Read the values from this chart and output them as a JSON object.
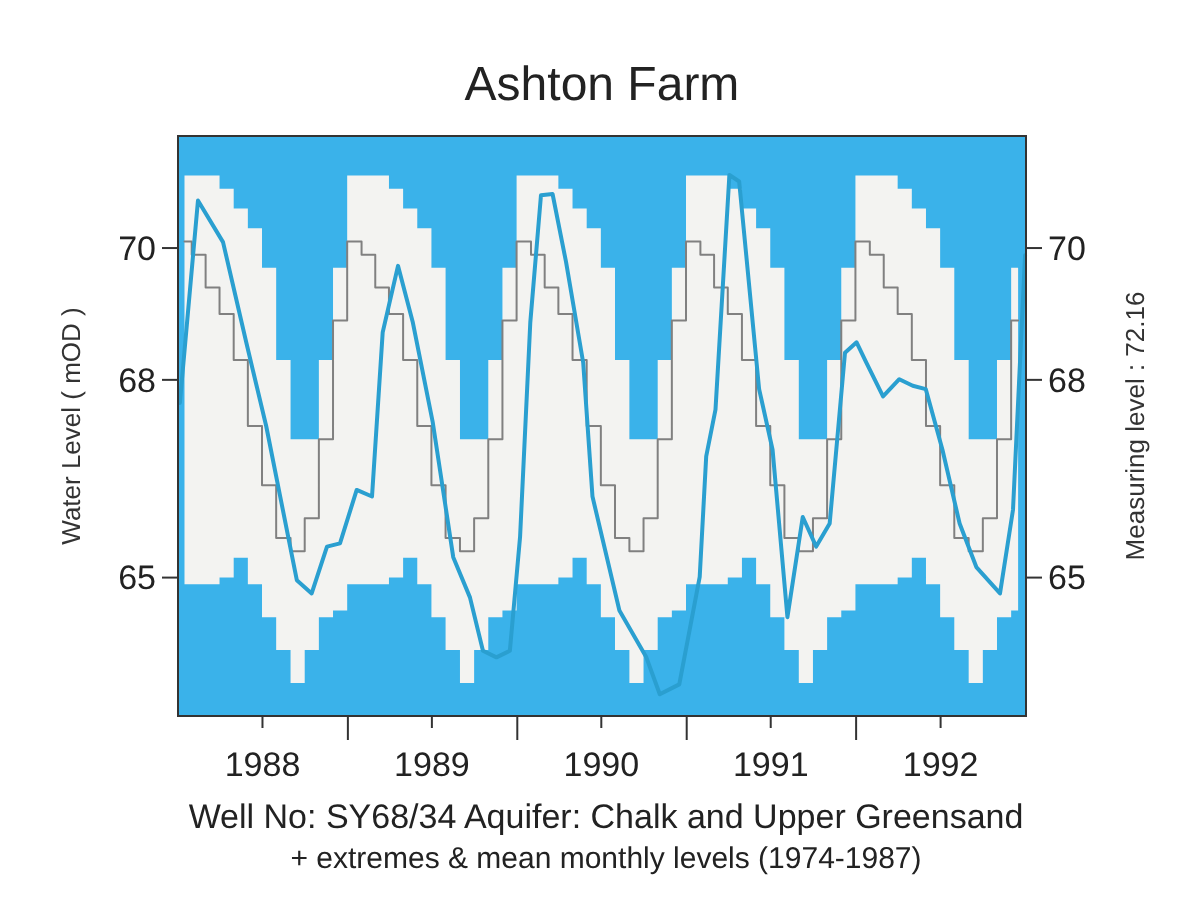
{
  "chart_data": {
    "type": "line",
    "title": "Ashton Farm",
    "ylabel": "Water Level ( mOD )",
    "y2label": "Measuring level :  72.16",
    "annotations": [
      "Well No: SY68/34  Aquifer: Chalk and Upper Greensand",
      "+ extremes & mean monthly levels (1974-1987)"
    ],
    "xlim": [
      "1988-01-01",
      "1993-01-01"
    ],
    "xticks": [
      {
        "value": "1988-07-01",
        "label": "1988"
      },
      {
        "value": "1989-01-01",
        "label": null
      },
      {
        "value": "1989-07-01",
        "label": "1989"
      },
      {
        "value": "1990-01-01",
        "label": null
      },
      {
        "value": "1990-07-01",
        "label": "1990"
      },
      {
        "value": "1991-01-01",
        "label": null
      },
      {
        "value": "1991-07-01",
        "label": "1991"
      },
      {
        "value": "1992-01-01",
        "label": null
      },
      {
        "value": "1992-07-01",
        "label": "1992"
      }
    ],
    "ylim": [
      62.9,
      71.7
    ],
    "yticks": [
      65,
      68,
      70
    ],
    "y2lim": [
      62.9,
      71.7
    ],
    "y2ticks": [
      65,
      68,
      70
    ],
    "series": [
      {
        "type": "step",
        "color": "#808080",
        "x": [
          "1988-01-15",
          "1988-02-15",
          "1988-03-15",
          "1988-04-15",
          "1988-05-15",
          "1988-06-15",
          "1988-07-15",
          "1988-08-15",
          "1988-09-15",
          "1988-10-15",
          "1988-11-15",
          "1988-12-15",
          "1989-01-15",
          "1989-02-15",
          "1989-03-15",
          "1989-04-15",
          "1989-05-15",
          "1989-06-15",
          "1989-07-15",
          "1989-08-15",
          "1989-09-15",
          "1989-10-15",
          "1989-11-15",
          "1989-12-15",
          "1990-01-15",
          "1990-02-15",
          "1990-03-15",
          "1990-04-15",
          "1990-05-15",
          "1990-06-15",
          "1990-07-15",
          "1990-08-15",
          "1990-09-15",
          "1990-10-15",
          "1990-11-15",
          "1990-12-15",
          "1991-01-15",
          "1991-02-15",
          "1991-03-15",
          "1991-04-15",
          "1991-05-15",
          "1991-06-15",
          "1991-07-15",
          "1991-08-15",
          "1991-09-15",
          "1991-10-15",
          "1991-11-15",
          "1991-12-15",
          "1992-01-15",
          "1992-02-15",
          "1992-03-15",
          "1992-04-15",
          "1992-05-15",
          "1992-06-15",
          "1992-07-15",
          "1992-08-15",
          "1992-09-15",
          "1992-10-15",
          "1992-11-15",
          "1992-12-15"
        ],
        "values": [
          70.1,
          69.9,
          69.4,
          69.0,
          68.3,
          67.3,
          66.4,
          65.6,
          65.4,
          65.9,
          67.1,
          68.9,
          70.1,
          69.9,
          69.4,
          69.0,
          68.3,
          67.3,
          66.4,
          65.6,
          65.4,
          65.9,
          67.1,
          68.9,
          70.1,
          69.9,
          69.4,
          69.0,
          68.3,
          67.3,
          66.4,
          65.6,
          65.4,
          65.9,
          67.1,
          68.9,
          70.1,
          69.9,
          69.4,
          69.0,
          68.3,
          67.3,
          66.4,
          65.6,
          65.4,
          65.9,
          67.1,
          68.9,
          70.1,
          69.9,
          69.4,
          69.0,
          68.3,
          67.3,
          66.4,
          65.6,
          65.4,
          65.9,
          67.1,
          68.9
        ],
        "lower": [
          64.9,
          64.9,
          64.9,
          65.0,
          65.3,
          64.9,
          64.4,
          63.9,
          63.4,
          63.9,
          64.4,
          64.5,
          64.9,
          64.9,
          64.9,
          65.0,
          65.3,
          64.9,
          64.4,
          63.9,
          63.4,
          63.9,
          64.4,
          64.5,
          64.9,
          64.9,
          64.9,
          65.0,
          65.3,
          64.9,
          64.4,
          63.9,
          63.4,
          63.9,
          64.4,
          64.5,
          64.9,
          64.9,
          64.9,
          65.0,
          65.3,
          64.9,
          64.4,
          63.9,
          63.4,
          63.9,
          64.4,
          64.5,
          64.9,
          64.9,
          64.9,
          65.0,
          65.3,
          64.9,
          64.4,
          63.9,
          63.4,
          63.9,
          64.4,
          64.5
        ],
        "upper": [
          71.1,
          71.1,
          71.1,
          70.9,
          70.6,
          70.3,
          69.7,
          68.3,
          67.1,
          67.1,
          68.3,
          69.7,
          71.1,
          71.1,
          71.1,
          70.9,
          70.6,
          70.3,
          69.7,
          68.3,
          67.1,
          67.1,
          68.3,
          69.7,
          71.1,
          71.1,
          71.1,
          70.9,
          70.6,
          70.3,
          69.7,
          68.3,
          67.1,
          67.1,
          68.3,
          69.7,
          71.1,
          71.1,
          71.1,
          70.9,
          70.6,
          70.3,
          69.7,
          68.3,
          67.1,
          67.1,
          68.3,
          69.7,
          71.1,
          71.1,
          71.1,
          70.9,
          70.6,
          70.3,
          69.7,
          68.3,
          67.1,
          67.1,
          68.3,
          69.7
        ]
      },
      {
        "type": "line",
        "color": "#2a9fd0",
        "x": [
          "1988-01-05",
          "1988-02-13",
          "1988-04-07",
          "1988-05-27",
          "1988-07-09",
          "1988-09-13",
          "1988-10-15",
          "1988-11-17",
          "1988-12-15",
          "1989-01-20",
          "1989-02-22",
          "1989-03-17",
          "1989-04-19",
          "1989-05-21",
          "1989-07-03",
          "1989-08-16",
          "1989-09-21",
          "1989-10-19",
          "1989-11-17",
          "1989-12-16",
          "1990-01-07",
          "1990-01-29",
          "1990-02-21",
          "1990-03-18",
          "1990-04-16",
          "1990-05-23",
          "1990-06-12",
          "1990-08-09",
          "1990-10-06",
          "1990-11-04",
          "1990-12-16",
          "1991-01-29",
          "1991-02-12",
          "1991-03-04",
          "1991-04-03",
          "1991-04-24",
          "1991-06-06",
          "1991-07-05",
          "1991-08-06",
          "1991-09-08",
          "1991-10-07",
          "1991-11-05",
          "1991-12-08",
          "1992-01-02",
          "1992-01-23",
          "1992-02-28",
          "1992-04-03",
          "1992-05-02",
          "1992-05-30",
          "1992-07-05",
          "1992-08-11",
          "1992-09-16",
          "1992-11-06",
          "1992-12-04",
          "1992-12-30"
        ],
        "values": [
          67.65,
          70.72,
          70.09,
          68.57,
          67.3,
          64.96,
          64.76,
          65.47,
          65.52,
          66.33,
          66.23,
          68.72,
          69.73,
          68.87,
          67.35,
          65.31,
          64.7,
          63.89,
          63.79,
          63.89,
          65.62,
          68.87,
          70.8,
          70.82,
          69.79,
          68.26,
          66.23,
          64.5,
          63.79,
          63.23,
          63.38,
          65.01,
          66.84,
          67.55,
          71.11,
          71.01,
          67.86,
          66.94,
          64.4,
          65.92,
          65.47,
          65.82,
          68.41,
          68.57,
          68.26,
          67.75,
          68.01,
          67.91,
          67.86,
          66.94,
          65.82,
          65.16,
          64.76,
          66.03,
          69.89
        ]
      }
    ]
  }
}
